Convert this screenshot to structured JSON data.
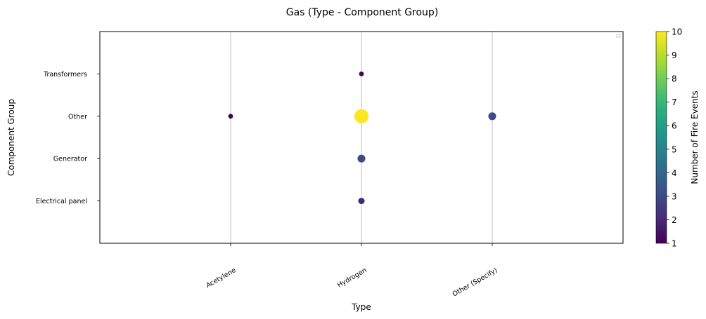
{
  "chart_data": {
    "type": "scatter",
    "title": "Gas (Type - Component Group)",
    "xlabel": "Type",
    "ylabel": "Component Group",
    "x_categories": [
      "Acetylene",
      "Hydrogen",
      "Other (Specify)"
    ],
    "y_categories": [
      "Electrical panel",
      "Generator",
      "Other",
      "Transformers"
    ],
    "points": [
      {
        "x": "Acetylene",
        "y": "Other",
        "count": 1
      },
      {
        "x": "Hydrogen",
        "y": "Transformers",
        "count": 1
      },
      {
        "x": "Hydrogen",
        "y": "Other",
        "count": 10
      },
      {
        "x": "Hydrogen",
        "y": "Generator",
        "count": 3
      },
      {
        "x": "Hydrogen",
        "y": "Electrical panel",
        "count": 2
      },
      {
        "x": "Other (Specify)",
        "y": "Other",
        "count": 3
      }
    ],
    "colorbar": {
      "label": "Number of Fire Events",
      "min": 1,
      "max": 10,
      "ticks": [
        1,
        2,
        3,
        4,
        5,
        6,
        7,
        8,
        9,
        10
      ],
      "colormap": "viridis"
    },
    "grid": "vertical",
    "legend": "top-right (empty)"
  }
}
